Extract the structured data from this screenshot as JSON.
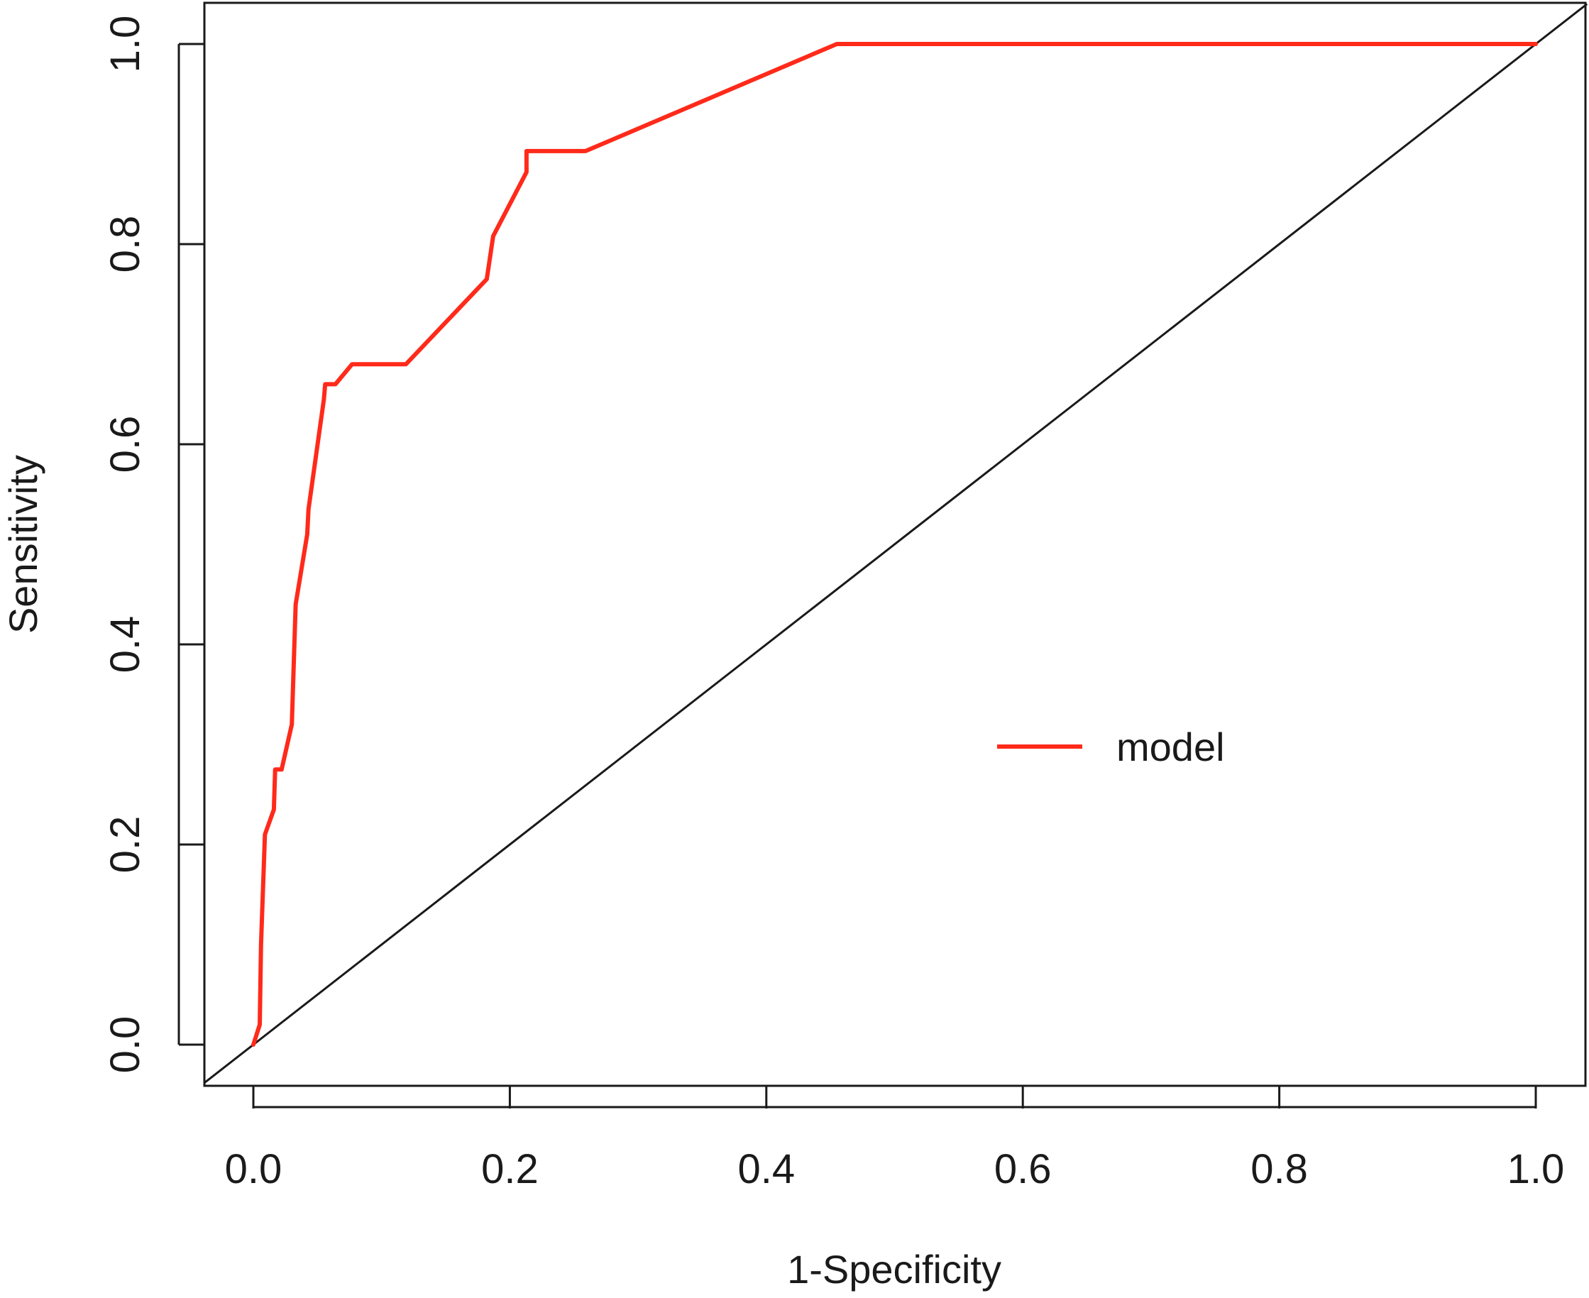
{
  "chart_data": {
    "type": "line",
    "title": "",
    "xlabel": "1-Specificity",
    "ylabel": "Sensitivity",
    "xlim": [
      0,
      1
    ],
    "ylim": [
      0,
      1
    ],
    "grid": false,
    "legend_position": "center-right",
    "x_ticks": [
      "0.0",
      "0.2",
      "0.4",
      "0.6",
      "0.8",
      "1.0"
    ],
    "y_ticks": [
      "0.0",
      "0.2",
      "0.4",
      "0.6",
      "0.8",
      "1.0"
    ],
    "x_tick_values": [
      0,
      0.2,
      0.4,
      0.6,
      0.8,
      1.0
    ],
    "y_tick_values": [
      0,
      0.2,
      0.4,
      0.6,
      0.8,
      1.0
    ],
    "reference_line": {
      "x": [
        -0.038,
        1.04
      ],
      "y": [
        -0.038,
        1.04
      ],
      "color": "#1a1a1a"
    },
    "series": [
      {
        "name": "model",
        "color": "#ff2a1a",
        "points": [
          [
            0.0,
            0.0
          ],
          [
            0.005,
            0.02
          ],
          [
            0.006,
            0.1
          ],
          [
            0.009,
            0.21
          ],
          [
            0.016,
            0.235
          ],
          [
            0.017,
            0.275
          ],
          [
            0.022,
            0.275
          ],
          [
            0.03,
            0.32
          ],
          [
            0.031,
            0.36
          ],
          [
            0.033,
            0.44
          ],
          [
            0.042,
            0.51
          ],
          [
            0.043,
            0.535
          ],
          [
            0.055,
            0.645
          ],
          [
            0.056,
            0.66
          ],
          [
            0.064,
            0.66
          ],
          [
            0.077,
            0.68
          ],
          [
            0.119,
            0.68
          ],
          [
            0.182,
            0.765
          ],
          [
            0.187,
            0.808
          ],
          [
            0.213,
            0.872
          ],
          [
            0.213,
            0.893
          ],
          [
            0.259,
            0.893
          ],
          [
            0.455,
            1.0
          ],
          [
            1.0,
            1.0
          ]
        ]
      }
    ]
  }
}
